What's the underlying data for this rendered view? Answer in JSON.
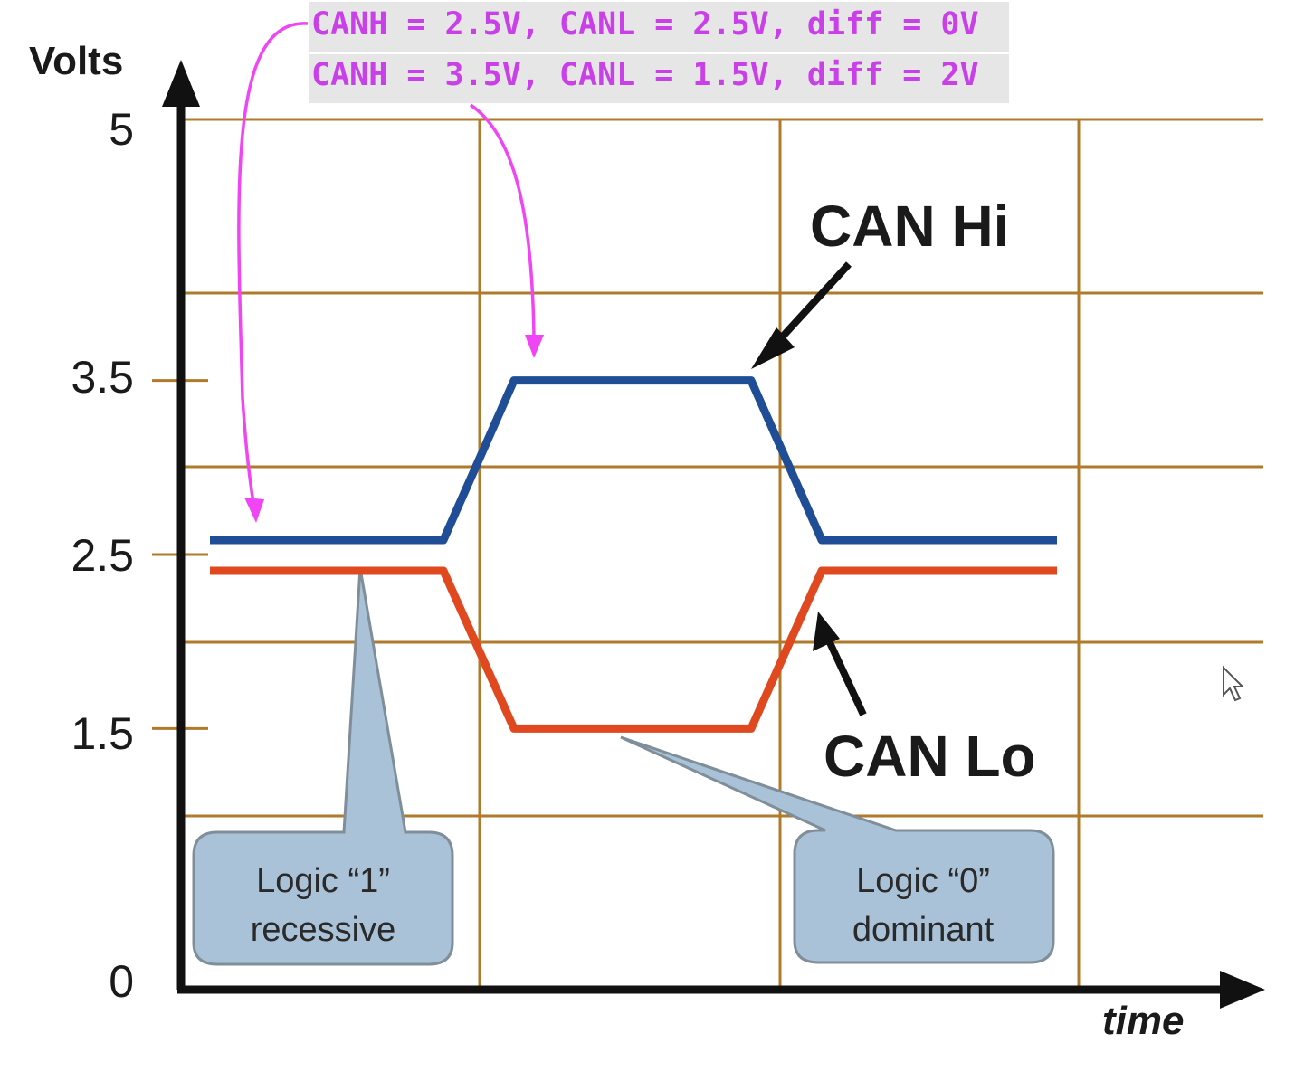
{
  "chart_data": {
    "type": "line",
    "ylabel": "Volts",
    "xlabel": "time",
    "ylim": [
      0,
      5
    ],
    "y_ticks": [
      "5",
      "3.5",
      "2.5",
      "1.5",
      "0"
    ],
    "y_tick_values": [
      5,
      3.5,
      2.5,
      1.5,
      0
    ],
    "grid": true,
    "series": [
      {
        "name": "CAN Hi",
        "color": "#1f4e96",
        "values": [
          2.5,
          2.5,
          3.5,
          3.5,
          2.5,
          2.5
        ]
      },
      {
        "name": "CAN Lo",
        "color": "#e0481f",
        "values": [
          2.5,
          2.5,
          1.5,
          1.5,
          2.5,
          2.5
        ]
      }
    ],
    "callouts": [
      {
        "line1": "Logic “1”",
        "line2": "recessive"
      },
      {
        "line1": "Logic “0”",
        "line2": "dominant"
      }
    ]
  },
  "annotations": {
    "color": "#e040fb",
    "highlight": "#e6e6e6",
    "line1": "CANH = 2.5V, CANL = 2.5V, diff = 0V",
    "line2": "CANH = 3.5V, CANL = 1.5V, diff = 2V"
  },
  "colors": {
    "grid": "#b07a2c",
    "axis": "#111111",
    "callout_fill": "#a9c2d8",
    "callout_stroke": "#7f8e99"
  }
}
